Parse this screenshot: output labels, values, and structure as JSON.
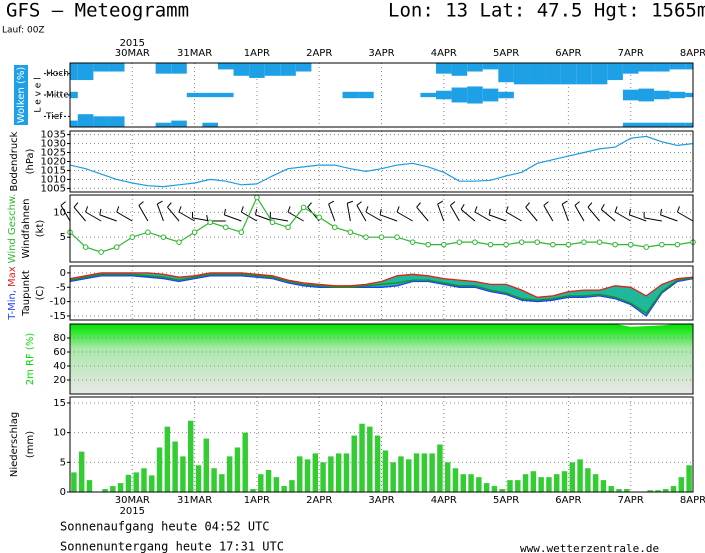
{
  "header": {
    "title": "GFS — Meteogramm",
    "location": "Lon: 13 Lat: 47.5 Hgt: 1565m",
    "run": "Lauf: 00Z"
  },
  "footer": {
    "sunrise": "Sonnenaufgang heute 04:52 UTC",
    "sunset": "Sonnenuntergang heute 17:31 UTC",
    "source": "www.wetterzentrale.de"
  },
  "time": {
    "year": "2015",
    "xlim": [
      0,
      10
    ],
    "xticks": [
      {
        "value": 1,
        "label": "30MAR"
      },
      {
        "value": 2,
        "label": "31MAR"
      },
      {
        "value": 3,
        "label": "1APR"
      },
      {
        "value": 4,
        "label": "2APR"
      },
      {
        "value": 5,
        "label": "3APR"
      },
      {
        "value": 6,
        "label": "4APR"
      },
      {
        "value": 7,
        "label": "5APR"
      },
      {
        "value": 8,
        "label": "6APR"
      },
      {
        "value": 9,
        "label": "7APR"
      },
      {
        "value": 10,
        "label": "8APR"
      }
    ],
    "x": [
      0,
      0.25,
      0.5,
      0.75,
      1,
      1.25,
      1.5,
      1.75,
      2,
      2.25,
      2.5,
      2.75,
      3,
      3.25,
      3.5,
      3.75,
      4,
      4.25,
      4.5,
      4.75,
      5,
      5.25,
      5.5,
      5.75,
      6,
      6.25,
      6.5,
      6.75,
      7,
      7.25,
      7.5,
      7.75,
      8,
      8.25,
      8.5,
      8.75,
      9,
      9.25,
      9.5,
      9.75,
      10
    ],
    "bins": [
      0,
      0.125,
      0.25,
      0.375,
      0.5,
      0.625,
      0.75,
      0.875,
      1,
      1.125,
      1.25,
      1.375,
      1.5,
      1.625,
      1.75,
      1.875,
      2,
      2.125,
      2.25,
      2.375,
      2.5,
      2.625,
      2.75,
      2.875,
      3,
      3.125,
      3.25,
      3.375,
      3.5,
      3.625,
      3.75,
      3.875,
      4,
      4.125,
      4.25,
      4.375,
      4.5,
      4.625,
      4.75,
      4.875,
      5,
      5.125,
      5.25,
      5.375,
      5.5,
      5.625,
      5.75,
      5.875,
      6,
      6.125,
      6.25,
      6.375,
      6.5,
      6.625,
      6.75,
      6.875,
      7,
      7.125,
      7.25,
      7.375,
      7.5,
      7.625,
      7.75,
      7.875,
      8,
      8.125,
      8.25,
      8.375,
      8.5,
      8.625,
      8.75,
      8.875,
      9,
      9.125,
      9.25,
      9.375,
      9.5,
      9.625,
      9.75,
      9.875,
      10
    ]
  },
  "chart_data": [
    {
      "type": "cloud_levels",
      "ylabel": "Wolken (%)",
      "level_label": "L e v e l",
      "series": [
        {
          "name": "Hoch",
          "color": "#1ea0e6",
          "values": [
            80,
            80,
            40,
            40,
            0,
            0,
            50,
            50,
            0,
            0,
            30,
            60,
            70,
            60,
            60,
            40,
            0,
            0,
            0,
            0,
            0,
            0,
            0,
            0,
            50,
            60,
            40,
            30,
            90,
            100,
            100,
            100,
            100,
            100,
            100,
            80,
            50,
            40,
            40,
            30,
            30
          ]
        },
        {
          "name": "Mittel",
          "color": "#1ea0e6",
          "values": [
            30,
            0,
            0,
            0,
            0,
            0,
            0,
            0,
            20,
            20,
            20,
            0,
            0,
            0,
            0,
            0,
            0,
            0,
            30,
            30,
            0,
            0,
            0,
            20,
            40,
            70,
            80,
            60,
            30,
            0,
            0,
            0,
            0,
            0,
            0,
            0,
            50,
            60,
            40,
            30,
            20
          ]
        },
        {
          "name": "Tief",
          "color": "#1ea0e6",
          "values": [
            30,
            60,
            50,
            50,
            0,
            0,
            20,
            30,
            0,
            20,
            0,
            0,
            0,
            0,
            0,
            0,
            0,
            0,
            0,
            0,
            0,
            0,
            0,
            0,
            0,
            0,
            0,
            0,
            0,
            0,
            0,
            0,
            0,
            0,
            0,
            0,
            20,
            20,
            20,
            20,
            20
          ]
        }
      ]
    },
    {
      "type": "line",
      "ylabel": "Bodendruck",
      "yunit": "(hPa)",
      "color": "#1e9be0",
      "values": [
        1018,
        1016,
        1013,
        1010,
        1008,
        1006.5,
        1006,
        1007,
        1008,
        1010,
        1009,
        1007,
        1007.5,
        1012,
        1016,
        1017,
        1018,
        1018,
        1016,
        1014.5,
        1016,
        1018,
        1019,
        1017,
        1014,
        1009,
        1009,
        1009.5,
        1012,
        1014,
        1019,
        1021,
        1023,
        1025,
        1027,
        1028,
        1033,
        1034,
        1031,
        1029,
        1030
      ],
      "ylim": [
        1003,
        1037
      ],
      "yticks": [
        1005,
        1010,
        1015,
        1020,
        1025,
        1030,
        1035
      ],
      "grid": true
    },
    {
      "type": "wind",
      "ylabel": "Windfahnen",
      "yunit": "(kt)",
      "speed_label": "Wind Geschw.",
      "color": "#2db82d",
      "barb_color": "#000000",
      "values": [
        6,
        3,
        2,
        3,
        5,
        6,
        5,
        4,
        6,
        8,
        7,
        6,
        13,
        8,
        7,
        11,
        9,
        7,
        6,
        5,
        5,
        5,
        4,
        3.5,
        3.5,
        4,
        4,
        3.5,
        3.5,
        4,
        4,
        3.5,
        3.5,
        4,
        4,
        3.5,
        3.5,
        3,
        3.5,
        3.5,
        4
      ],
      "directions": [
        330,
        320,
        300,
        290,
        300,
        330,
        340,
        320,
        300,
        280,
        270,
        290,
        300,
        290,
        280,
        300,
        320,
        340,
        350,
        330,
        300,
        290,
        300,
        320,
        340,
        330,
        310,
        300,
        290,
        300,
        320,
        330,
        340,
        330,
        320,
        310,
        300,
        290,
        280,
        290,
        300
      ],
      "ylim": [
        0,
        13.5
      ],
      "yticks": [
        5,
        10
      ],
      "grid": true
    },
    {
      "type": "temperature",
      "yunit": "(C)",
      "fill_color": "#1fb89a",
      "series": [
        {
          "name": "T-Min,",
          "color": "#1f3fff",
          "values": [
            -3,
            -2,
            -1,
            -1,
            -1,
            -1.5,
            -2,
            -3,
            -2,
            -1,
            -1,
            -1,
            -1.5,
            -2,
            -3.5,
            -4.5,
            -5,
            -5,
            -5,
            -5,
            -5,
            -4.5,
            -3,
            -3,
            -4,
            -5,
            -5,
            -6.5,
            -7.5,
            -9.5,
            -10,
            -9.5,
            -8.5,
            -8.5,
            -8,
            -9,
            -11,
            -15,
            -7,
            -3,
            -2
          ]
        },
        {
          "name": "Max",
          "color": "#e0201e",
          "values": [
            -2,
            -1,
            0,
            0,
            0,
            0,
            -0.5,
            -1.5,
            -1,
            0,
            0,
            0,
            -0.5,
            -1,
            -2.5,
            -3.5,
            -4,
            -4.5,
            -4.5,
            -4,
            -3,
            -1,
            -0.5,
            -1,
            -2,
            -2.5,
            -3,
            -4,
            -4,
            -6,
            -8.5,
            -8,
            -6.5,
            -6,
            -6,
            -4.5,
            -5,
            -8,
            -4,
            -2,
            -1.5
          ]
        },
        {
          "name": "Taupunkt",
          "color": "#1a8f1a",
          "values": [
            -2.5,
            -1.5,
            -0.5,
            -0.5,
            -0.5,
            -1,
            -1.5,
            -2.5,
            -1.5,
            -0.5,
            -0.5,
            -0.5,
            -1,
            -1.5,
            -3,
            -4,
            -4.5,
            -5,
            -5,
            -4.5,
            -4,
            -3.5,
            -2.5,
            -2.5,
            -3.5,
            -4.5,
            -4.5,
            -6,
            -7,
            -9,
            -9.5,
            -9,
            -8,
            -8,
            -7.5,
            -8.5,
            -10.5,
            -14,
            -6.5,
            -2.5,
            -1.8
          ]
        }
      ],
      "ylim": [
        -16.4,
        2.4
      ],
      "yticks": [
        0,
        -5,
        -10,
        -15
      ],
      "grid": true
    },
    {
      "type": "area",
      "ylabel": "2m RF (%)",
      "color": "#00e000",
      "values": [
        100,
        100,
        100,
        100,
        100,
        100,
        100,
        100,
        100,
        100,
        100,
        100,
        100,
        100,
        100,
        100,
        100,
        100,
        100,
        100,
        100,
        100,
        100,
        100,
        100,
        100,
        100,
        100,
        100,
        100,
        100,
        100,
        100,
        100,
        100,
        100,
        96,
        97,
        98,
        100,
        100
      ],
      "ylim": [
        0,
        100
      ],
      "yticks": [
        20,
        40,
        60,
        80
      ],
      "grid": true
    },
    {
      "type": "bar",
      "ylabel": "Niederschlag",
      "yunit": "(mm)",
      "color": "#33cc33",
      "values": [
        3.3,
        6.8,
        2,
        0,
        0.5,
        1,
        1.5,
        2.9,
        3.3,
        4,
        2.8,
        7.5,
        11,
        8.5,
        6,
        12,
        4.5,
        9,
        4,
        3,
        6,
        7.5,
        10,
        0.5,
        3,
        3.7,
        2.5,
        1,
        2,
        6,
        5.5,
        6.5,
        5,
        6,
        6.5,
        6.5,
        9.5,
        11.5,
        11,
        9.5,
        7,
        5,
        6,
        5.5,
        6.5,
        6.5,
        6.5,
        8,
        5,
        4,
        3,
        3,
        2.5,
        1.5,
        1,
        0.5,
        2,
        2,
        3,
        3.5,
        2.5,
        2.5,
        3,
        3.5,
        5,
        5.5,
        4,
        3,
        2,
        1,
        0.5,
        0.5,
        0,
        0,
        0.3,
        0.3,
        0.5,
        1,
        2.5,
        4.5
      ],
      "ylim": [
        0,
        16
      ],
      "yticks": [
        0,
        5,
        10,
        15
      ],
      "grid": true
    }
  ]
}
